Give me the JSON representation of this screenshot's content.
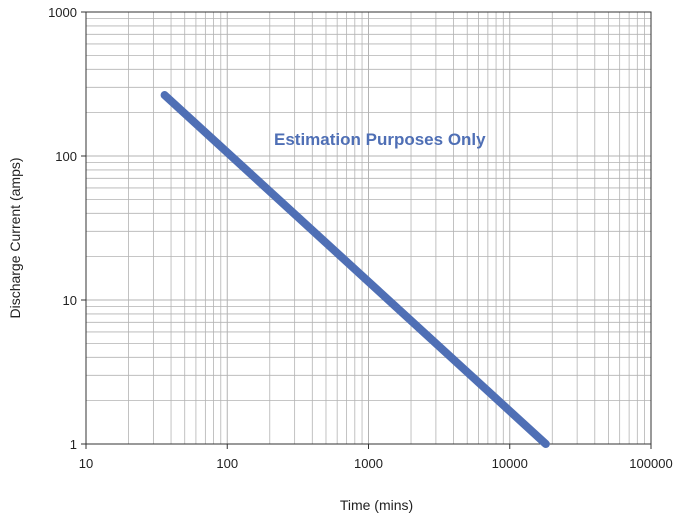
{
  "chart_data": {
    "type": "line",
    "title": "",
    "xlabel": "Time (mins)",
    "ylabel": "Discharge Current (amps)",
    "x_scale": "log",
    "y_scale": "log",
    "xlim": [
      10,
      100000
    ],
    "ylim": [
      1,
      1000
    ],
    "x_ticks": [
      "10",
      "100",
      "1000",
      "10000",
      "100000"
    ],
    "y_ticks": [
      "1",
      "10",
      "100",
      "1000"
    ],
    "grid": true,
    "legend": "none",
    "annotation": "Estimation Purposes Only",
    "series": [
      {
        "x": [
          36,
          18000
        ],
        "y": [
          265,
          1
        ],
        "color": "#4f6fb5"
      }
    ],
    "colors": {
      "line": "#4f6fb5",
      "annotation": "#4f6fb5",
      "grid": "#b3b3b3",
      "axis": "#333333"
    }
  }
}
